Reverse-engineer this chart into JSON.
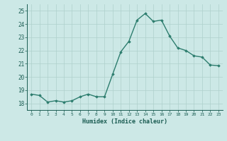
{
  "x": [
    0,
    1,
    2,
    3,
    4,
    5,
    6,
    7,
    8,
    9,
    10,
    11,
    12,
    13,
    14,
    15,
    16,
    17,
    18,
    19,
    20,
    21,
    22,
    23
  ],
  "y": [
    18.7,
    18.6,
    18.1,
    18.2,
    18.1,
    18.2,
    18.5,
    18.7,
    18.5,
    18.5,
    20.2,
    21.9,
    22.7,
    24.3,
    24.8,
    24.2,
    24.3,
    23.1,
    22.2,
    22.0,
    21.6,
    21.5,
    20.9,
    20.85
  ],
  "ylim": [
    17.5,
    25.5
  ],
  "xlim": [
    -0.5,
    23.5
  ],
  "yticks": [
    18,
    19,
    20,
    21,
    22,
    23,
    24,
    25
  ],
  "xticks": [
    0,
    1,
    2,
    3,
    4,
    5,
    6,
    7,
    8,
    9,
    10,
    11,
    12,
    13,
    14,
    15,
    16,
    17,
    18,
    19,
    20,
    21,
    22,
    23
  ],
  "xlabel": "Humidex (Indice chaleur)",
  "line_color": "#2d7d6e",
  "bg_color": "#cce8e6",
  "grid_color": "#aed0cc",
  "tick_color": "#1a5c52",
  "label_color": "#1a5c52",
  "marker": "D",
  "markersize": 1.8,
  "linewidth": 1.0
}
